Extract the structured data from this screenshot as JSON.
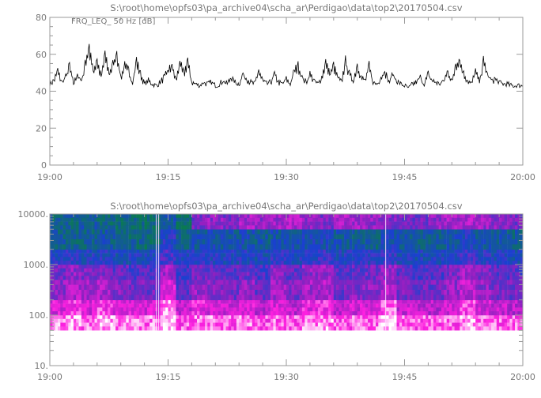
{
  "chart_data": [
    {
      "type": "line",
      "title": "S:\\root\\home\\opfs03\\pa_archive04\\scha_ar\\Perdigao\\data\\top2\\20170504.csv",
      "annotation": "FRQ_LEQ_ 50 Hz [dB]",
      "xlabel": "",
      "ylabel": "",
      "x_range": [
        "19:00",
        "20:00"
      ],
      "x_ticks": [
        "19:00",
        "19:15",
        "19:30",
        "19:45",
        "20:00"
      ],
      "ylim": [
        0,
        80
      ],
      "y_ticks": [
        "0",
        "20",
        "40",
        "60",
        "80"
      ],
      "grid": false,
      "x_step_seconds": 30,
      "values": [
        44,
        46,
        52,
        45,
        48,
        55,
        44,
        50,
        45,
        57,
        66,
        52,
        58,
        48,
        62,
        50,
        56,
        62,
        48,
        55,
        52,
        45,
        58,
        50,
        44,
        46,
        44,
        43,
        45,
        48,
        52,
        55,
        46,
        57,
        50,
        58,
        45,
        44,
        43,
        45,
        44,
        45,
        43,
        44,
        46,
        44,
        48,
        45,
        44,
        50,
        47,
        45,
        44,
        52,
        46,
        44,
        45,
        50,
        45,
        44,
        47,
        44,
        52,
        55,
        48,
        45,
        50,
        46,
        44,
        48,
        57,
        50,
        55,
        48,
        45,
        58,
        50,
        46,
        55,
        48,
        46,
        55,
        45,
        44,
        48,
        52,
        45,
        50,
        46,
        44,
        43,
        41,
        44,
        45,
        48,
        44,
        50,
        46,
        45,
        44,
        46,
        52,
        45,
        56,
        58,
        50,
        46,
        44,
        52,
        45,
        58,
        50,
        46,
        47,
        45,
        44,
        44,
        43,
        43,
        43,
        43
      ],
      "color": "#000000"
    },
    {
      "type": "heatmap",
      "title": "S:\\root\\home\\opfs03\\pa_archive04\\scha_ar\\Perdigao\\data\\top2\\20170504.csv",
      "xlabel": "",
      "ylabel": "",
      "x_range": [
        "19:00",
        "20:00"
      ],
      "x_ticks": [
        "19:00",
        "19:15",
        "19:30",
        "19:45",
        "20:00"
      ],
      "y_scale": "log",
      "ylim": [
        10,
        10000
      ],
      "y_ticks": [
        "10.",
        "100.",
        "1000.",
        "10000."
      ],
      "x_bin_minutes": 2,
      "freq_band_edges_hz": [
        50,
        100,
        200,
        500,
        1000,
        2000,
        5000,
        10000
      ],
      "colormap": {
        "low": "#0a7a50",
        "mid_low": "#1a40d0",
        "mid": "#9020c0",
        "mid_high": "#ff20e0",
        "high": "#ffffff"
      },
      "levels": [
        [
          0.88,
          0.92,
          0.85,
          0.93,
          0.9,
          0.86,
          0.88,
          0.97,
          0.84,
          0.86,
          0.88,
          0.85,
          0.87,
          0.83,
          0.86,
          0.84,
          0.88,
          0.9,
          0.83,
          0.85,
          0.87,
          0.97,
          0.86,
          0.84,
          0.83,
          0.85,
          0.92,
          0.86,
          0.85,
          0.84
        ],
        [
          0.72,
          0.78,
          0.7,
          0.8,
          0.74,
          0.72,
          0.7,
          0.9,
          0.68,
          0.75,
          0.7,
          0.66,
          0.72,
          0.64,
          0.7,
          0.66,
          0.74,
          0.78,
          0.66,
          0.7,
          0.72,
          0.85,
          0.68,
          0.66,
          0.65,
          0.7,
          0.8,
          0.7,
          0.66,
          0.64
        ],
        [
          0.55,
          0.62,
          0.58,
          0.6,
          0.52,
          0.5,
          0.48,
          0.7,
          0.45,
          0.56,
          0.52,
          0.48,
          0.55,
          0.46,
          0.58,
          0.5,
          0.6,
          0.62,
          0.48,
          0.52,
          0.55,
          0.62,
          0.5,
          0.46,
          0.48,
          0.56,
          0.66,
          0.55,
          0.5,
          0.48
        ],
        [
          0.48,
          0.55,
          0.5,
          0.52,
          0.45,
          0.42,
          0.4,
          0.6,
          0.38,
          0.48,
          0.45,
          0.42,
          0.48,
          0.4,
          0.52,
          0.45,
          0.55,
          0.58,
          0.42,
          0.46,
          0.48,
          0.55,
          0.44,
          0.4,
          0.42,
          0.5,
          0.6,
          0.5,
          0.44,
          0.42
        ],
        [
          0.3,
          0.32,
          0.28,
          0.3,
          0.25,
          0.28,
          0.25,
          0.4,
          0.3,
          0.32,
          0.3,
          0.28,
          0.3,
          0.26,
          0.32,
          0.3,
          0.34,
          0.35,
          0.28,
          0.3,
          0.3,
          0.35,
          0.28,
          0.26,
          0.28,
          0.32,
          0.38,
          0.32,
          0.28,
          0.26
        ],
        [
          0.15,
          0.12,
          0.15,
          0.18,
          0.15,
          0.12,
          0.1,
          0.3,
          0.15,
          0.2,
          0.22,
          0.2,
          0.22,
          0.18,
          0.2,
          0.22,
          0.24,
          0.25,
          0.2,
          0.18,
          0.15,
          0.25,
          0.2,
          0.15,
          0.18,
          0.22,
          0.28,
          0.22,
          0.18,
          0.16
        ],
        [
          0.12,
          0.14,
          0.18,
          0.12,
          0.1,
          0.08,
          0.06,
          0.2,
          0.05,
          0.5,
          0.55,
          0.48,
          0.6,
          0.55,
          0.58,
          0.62,
          0.55,
          0.5,
          0.6,
          0.58,
          0.55,
          0.52,
          0.5,
          0.48,
          0.55,
          0.6,
          0.62,
          0.58,
          0.55,
          0.5
        ]
      ]
    }
  ]
}
